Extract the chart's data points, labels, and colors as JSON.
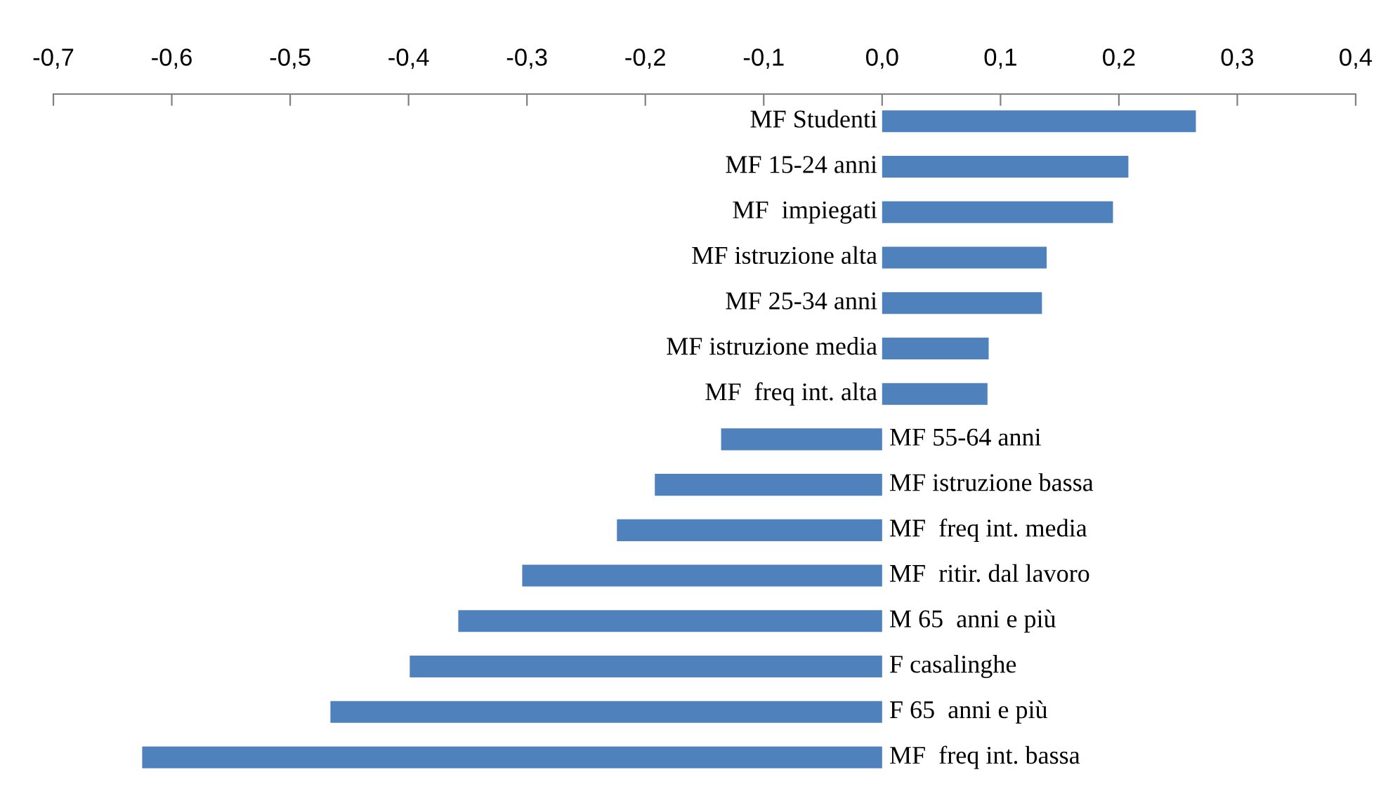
{
  "chart_data": {
    "type": "bar",
    "orientation": "horizontal",
    "categories": [
      "MF Studenti",
      "MF 15-24 anni",
      "MF  impiegati",
      "MF istruzione alta",
      "MF 25-34 anni",
      "MF istruzione media",
      "MF  freq int. alta",
      "MF 55-64 anni",
      "MF istruzione bassa",
      "MF  freq int. media",
      "MF  ritir. dal lavoro",
      "M 65  anni e più",
      "F casalinghe",
      "F 65  anni e più",
      "MF  freq int. bassa"
    ],
    "values": [
      0.265,
      0.208,
      0.195,
      0.139,
      0.135,
      0.09,
      0.089,
      -0.136,
      -0.192,
      -0.224,
      -0.304,
      -0.358,
      -0.399,
      -0.466,
      -0.625
    ],
    "color": "#4f81bd",
    "xlim": [
      -0.7,
      0.4
    ],
    "xticks": [
      {
        "value": -0.7,
        "label": "-0,7"
      },
      {
        "value": -0.6,
        "label": "-0,6"
      },
      {
        "value": -0.5,
        "label": "-0,5"
      },
      {
        "value": -0.4,
        "label": "-0,4"
      },
      {
        "value": -0.3,
        "label": "-0,3"
      },
      {
        "value": -0.2,
        "label": "-0,2"
      },
      {
        "value": -0.1,
        "label": "-0,1"
      },
      {
        "value": 0.0,
        "label": "0,0"
      },
      {
        "value": 0.1,
        "label": "0,1"
      },
      {
        "value": 0.2,
        "label": "0,2"
      },
      {
        "value": 0.3,
        "label": "0,3"
      },
      {
        "value": 0.4,
        "label": "0,4"
      }
    ],
    "grid": false,
    "legend": false
  }
}
